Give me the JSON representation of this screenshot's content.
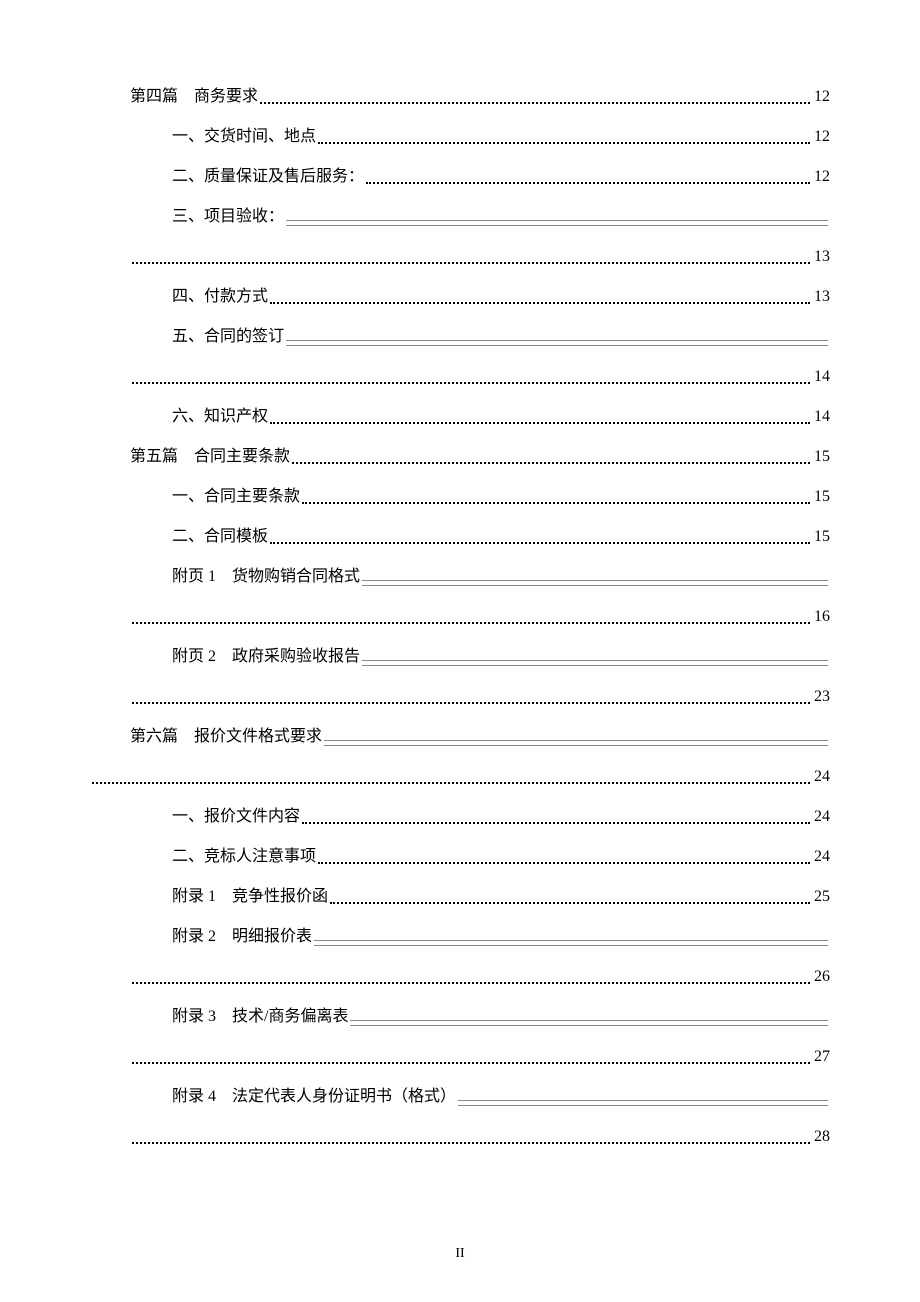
{
  "entries": [
    {
      "level": 1,
      "title": "第四篇",
      "subtitle": "商务要求",
      "page": "12",
      "style": "dots"
    },
    {
      "level": 2,
      "title": "一、交货时间、地点",
      "page": "12",
      "style": "dots"
    },
    {
      "level": 2,
      "title": "二、质量保证及售后服务：",
      "page": "12",
      "style": "dots"
    },
    {
      "level": 2,
      "title": "三、项目验收：",
      "page": "",
      "style": "double",
      "wrap": true
    },
    {
      "level": "cont",
      "title": "",
      "page": "13",
      "style": "dots"
    },
    {
      "level": 2,
      "title": "四、付款方式",
      "page": "13",
      "style": "dots"
    },
    {
      "level": 2,
      "title": "五、合同的签订",
      "page": "",
      "style": "double",
      "wrap": true
    },
    {
      "level": "cont",
      "title": "",
      "page": "14",
      "style": "dots"
    },
    {
      "level": 2,
      "title": "六、知识产权",
      "page": "14",
      "style": "dots"
    },
    {
      "level": 1,
      "title": "第五篇",
      "subtitle": "合同主要条款",
      "page": "15",
      "style": "dots"
    },
    {
      "level": 2,
      "title": "一、合同主要条款",
      "page": "15",
      "style": "dots"
    },
    {
      "level": 2,
      "title": "二、合同模板",
      "page": "15",
      "style": "dots"
    },
    {
      "level": 2,
      "title": "附页 1",
      "subtitle": "货物购销合同格式",
      "page": "",
      "style": "double",
      "wrap": true
    },
    {
      "level": "cont",
      "title": "",
      "page": "16",
      "style": "dots"
    },
    {
      "level": 2,
      "title": "附页 2",
      "subtitle": "政府采购验收报告",
      "page": "",
      "style": "double",
      "wrap": true
    },
    {
      "level": "cont",
      "title": "",
      "page": "23",
      "style": "dots"
    },
    {
      "level": 1,
      "title": "第六篇",
      "subtitle": "报价文件格式要求",
      "page": "",
      "style": "double",
      "wrap": true
    },
    {
      "level": "cont-full",
      "title": "",
      "page": "24",
      "style": "dots"
    },
    {
      "level": 2,
      "title": "一、报价文件内容",
      "page": "24",
      "style": "dots"
    },
    {
      "level": 2,
      "title": "二、竞标人注意事项",
      "page": "24",
      "style": "dots"
    },
    {
      "level": 2,
      "title": "附录 1",
      "subtitle": "竞争性报价函",
      "page": "25",
      "style": "dots"
    },
    {
      "level": 2,
      "title": "附录 2",
      "subtitle": "明细报价表",
      "page": "",
      "style": "double",
      "wrap": true
    },
    {
      "level": "cont",
      "title": "",
      "page": "26",
      "style": "dots"
    },
    {
      "level": 2,
      "title": "附录 3",
      "subtitle": "技术/商务偏离表",
      "page": "",
      "style": "double",
      "wrap": true
    },
    {
      "level": "cont",
      "title": "",
      "page": "27",
      "style": "dots"
    },
    {
      "level": 2,
      "title": "附录 4",
      "subtitle": "法定代表人身份证明书（格式）",
      "page": "",
      "style": "double",
      "wrap": true
    },
    {
      "level": "cont",
      "title": "",
      "page": "28",
      "style": "dots"
    }
  ],
  "pageNumber": "II",
  "styles": {
    "fontSize": 16,
    "textColor": "#000000",
    "backgroundColor": "#ffffff",
    "doubleLineColor": "#888888",
    "level1Indent": 40,
    "level2Indent": 82,
    "entrySpacing": 16
  }
}
